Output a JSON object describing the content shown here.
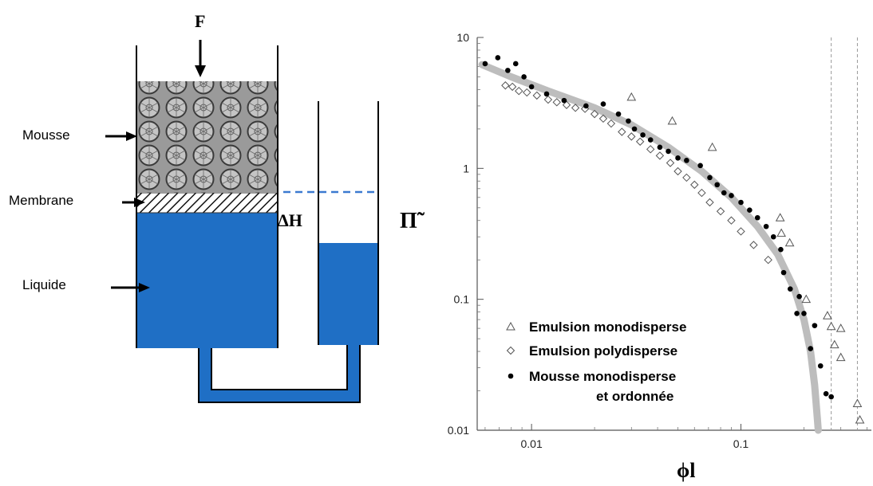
{
  "diagram": {
    "force_label": "F",
    "labels": {
      "foam": "Mousse",
      "membrane": "Membrane",
      "liquid": "Liquide",
      "delta_h": "ΔH"
    },
    "colors": {
      "liquid": "#1f6fc5",
      "dashed_line": "#3b7ad0",
      "foam_fill": "#8a8a8a"
    }
  },
  "chart_data": {
    "type": "scatter",
    "x_scale": "log",
    "y_scale": "log",
    "xlim": [
      0.0055,
      0.42
    ],
    "ylim": [
      0.01,
      10
    ],
    "xlabel": "ϕl",
    "ylabel": "Π̃",
    "y_tick_labels": [
      "10",
      "1",
      "0.1",
      "0.01"
    ],
    "x_tick_labels": [
      "0.01",
      "0.1"
    ],
    "vertical_dashed_lines_x": [
      0.27,
      0.36
    ],
    "legend_placement": "bottom-left",
    "series": [
      {
        "name": "Emulsion monodisperse",
        "marker": "triangle",
        "points": [
          [
            0.03,
            3.5
          ],
          [
            0.047,
            2.3
          ],
          [
            0.073,
            1.45
          ],
          [
            0.154,
            0.42
          ],
          [
            0.156,
            0.32
          ],
          [
            0.171,
            0.27
          ],
          [
            0.205,
            0.1
          ],
          [
            0.259,
            0.075
          ],
          [
            0.27,
            0.062
          ],
          [
            0.3,
            0.06
          ],
          [
            0.28,
            0.045
          ],
          [
            0.3,
            0.036
          ],
          [
            0.36,
            0.016
          ],
          [
            0.37,
            0.012
          ]
        ]
      },
      {
        "name": "Emulsion polydisperse",
        "marker": "diamond",
        "points": [
          [
            0.0075,
            4.3
          ],
          [
            0.0081,
            4.2
          ],
          [
            0.0087,
            3.9
          ],
          [
            0.0095,
            3.8
          ],
          [
            0.0106,
            3.6
          ],
          [
            0.012,
            3.35
          ],
          [
            0.0132,
            3.2
          ],
          [
            0.0147,
            3.05
          ],
          [
            0.0162,
            2.9
          ],
          [
            0.018,
            2.85
          ],
          [
            0.02,
            2.6
          ],
          [
            0.022,
            2.4
          ],
          [
            0.024,
            2.2
          ],
          [
            0.027,
            1.9
          ],
          [
            0.03,
            1.75
          ],
          [
            0.033,
            1.6
          ],
          [
            0.037,
            1.4
          ],
          [
            0.041,
            1.25
          ],
          [
            0.046,
            1.1
          ],
          [
            0.05,
            0.95
          ],
          [
            0.055,
            0.85
          ],
          [
            0.06,
            0.75
          ],
          [
            0.065,
            0.65
          ],
          [
            0.071,
            0.55
          ],
          [
            0.08,
            0.47
          ],
          [
            0.09,
            0.4
          ],
          [
            0.1,
            0.33
          ],
          [
            0.115,
            0.26
          ],
          [
            0.135,
            0.2
          ]
        ]
      },
      {
        "name": "Mousse monodisperse et ordonnée",
        "marker": "dot",
        "points": [
          [
            0.006,
            6.3
          ],
          [
            0.0069,
            7.0
          ],
          [
            0.0077,
            5.6
          ],
          [
            0.0084,
            6.3
          ],
          [
            0.0092,
            5.0
          ],
          [
            0.01,
            4.2
          ],
          [
            0.0118,
            3.7
          ],
          [
            0.0143,
            3.3
          ],
          [
            0.0182,
            3.0
          ],
          [
            0.022,
            3.1
          ],
          [
            0.026,
            2.6
          ],
          [
            0.029,
            2.3
          ],
          [
            0.031,
            2.0
          ],
          [
            0.034,
            1.8
          ],
          [
            0.037,
            1.65
          ],
          [
            0.041,
            1.45
          ],
          [
            0.045,
            1.35
          ],
          [
            0.05,
            1.2
          ],
          [
            0.055,
            1.15
          ],
          [
            0.064,
            1.05
          ],
          [
            0.071,
            0.85
          ],
          [
            0.077,
            0.75
          ],
          [
            0.083,
            0.65
          ],
          [
            0.09,
            0.62
          ],
          [
            0.1,
            0.55
          ],
          [
            0.11,
            0.48
          ],
          [
            0.12,
            0.42
          ],
          [
            0.132,
            0.36
          ],
          [
            0.143,
            0.3
          ],
          [
            0.155,
            0.24
          ],
          [
            0.16,
            0.16
          ],
          [
            0.172,
            0.12
          ],
          [
            0.185,
            0.078
          ],
          [
            0.2,
            0.078
          ],
          [
            0.215,
            0.042
          ],
          [
            0.225,
            0.063
          ],
          [
            0.19,
            0.105
          ],
          [
            0.24,
            0.031
          ],
          [
            0.255,
            0.019
          ],
          [
            0.27,
            0.018
          ]
        ]
      }
    ]
  }
}
